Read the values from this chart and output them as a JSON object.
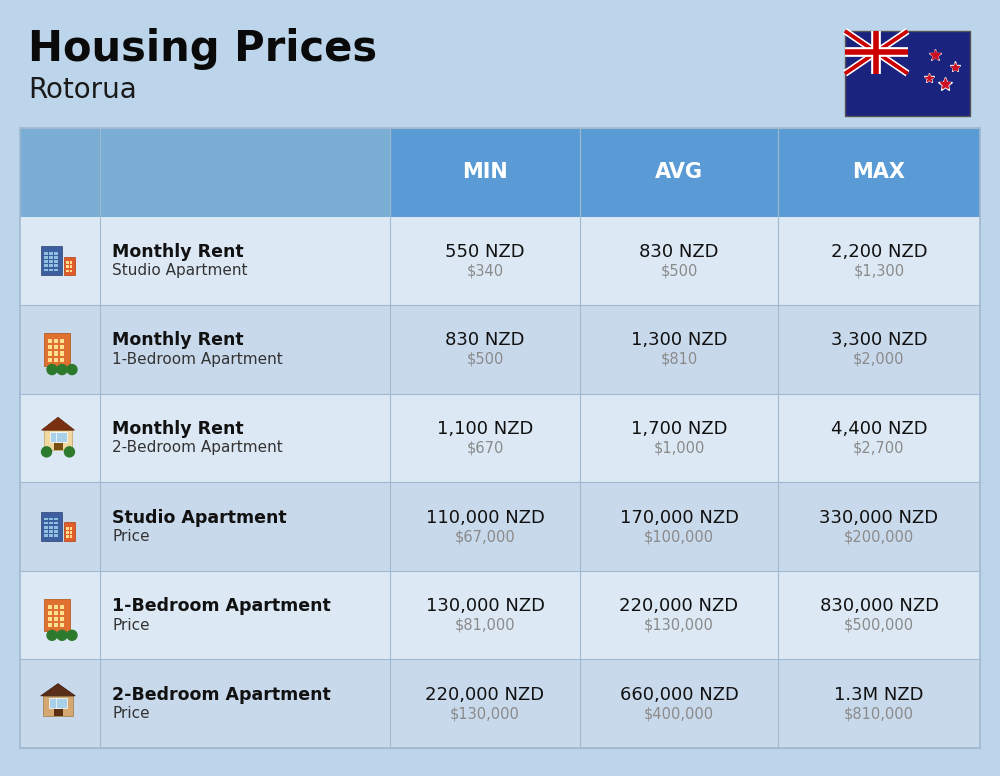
{
  "title": "Housing Prices",
  "subtitle": "Rotorua",
  "background_color": "#bdd5ea",
  "header_bg": "#5b9bd5",
  "header_text_color": "#ffffff",
  "row_bg_even": "#dce9f5",
  "row_bg_odd": "#c9d9ec",
  "divider_color": "#a0b8d0",
  "col_headers": [
    "MIN",
    "AVG",
    "MAX"
  ],
  "rows": [
    {
      "bold_label": "Monthly Rent",
      "sub_label": "Studio Apartment",
      "min_nzd": "550 NZD",
      "min_usd": "$340",
      "avg_nzd": "830 NZD",
      "avg_usd": "$500",
      "max_nzd": "2,200 NZD",
      "max_usd": "$1,300",
      "icon_type": "blue_office"
    },
    {
      "bold_label": "Monthly Rent",
      "sub_label": "1-Bedroom Apartment",
      "min_nzd": "830 NZD",
      "min_usd": "$500",
      "avg_nzd": "1,300 NZD",
      "avg_usd": "$810",
      "max_nzd": "3,300 NZD",
      "max_usd": "$2,000",
      "icon_type": "orange_apartment"
    },
    {
      "bold_label": "Monthly Rent",
      "sub_label": "2-Bedroom Apartment",
      "min_nzd": "1,100 NZD",
      "min_usd": "$670",
      "avg_nzd": "1,700 NZD",
      "avg_usd": "$1,000",
      "max_nzd": "4,400 NZD",
      "max_usd": "$2,700",
      "icon_type": "beige_house"
    },
    {
      "bold_label": "Studio Apartment",
      "sub_label": "Price",
      "min_nzd": "110,000 NZD",
      "min_usd": "$67,000",
      "avg_nzd": "170,000 NZD",
      "avg_usd": "$100,000",
      "max_nzd": "330,000 NZD",
      "max_usd": "$200,000",
      "icon_type": "blue_office"
    },
    {
      "bold_label": "1-Bedroom Apartment",
      "sub_label": "Price",
      "min_nzd": "130,000 NZD",
      "min_usd": "$81,000",
      "avg_nzd": "220,000 NZD",
      "avg_usd": "$130,000",
      "max_nzd": "830,000 NZD",
      "max_usd": "$500,000",
      "icon_type": "orange_apartment"
    },
    {
      "bold_label": "2-Bedroom Apartment",
      "sub_label": "Price",
      "min_nzd": "220,000 NZD",
      "min_usd": "$130,000",
      "avg_nzd": "660,000 NZD",
      "avg_usd": "$400,000",
      "max_nzd": "1.3M NZD",
      "max_usd": "$810,000",
      "icon_type": "brown_house"
    }
  ]
}
